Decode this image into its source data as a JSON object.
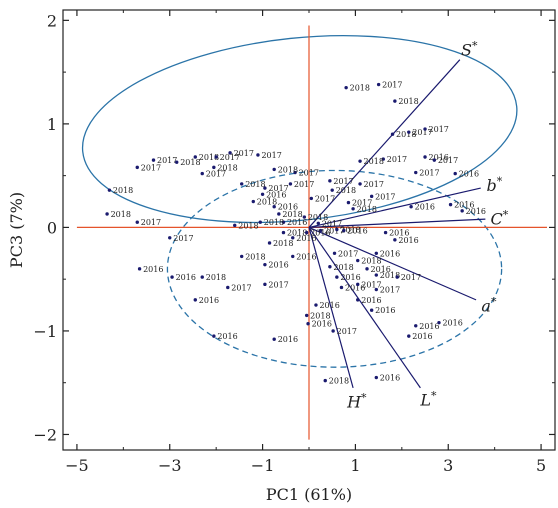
{
  "chart_data": {
    "type": "scatter",
    "title": "",
    "xlabel": "PC1 (61%)",
    "ylabel": "PC3 (7%)",
    "xlim": [
      -5.3,
      5.3
    ],
    "ylim": [
      -2.15,
      2.1
    ],
    "xticks": [
      -5,
      -3,
      -1,
      1,
      3,
      5
    ],
    "xtick_labels": [
      "−5",
      "−3",
      "−1",
      "1",
      "3",
      "5"
    ],
    "yticks": [
      -2,
      -1,
      0,
      1,
      2
    ],
    "ytick_labels": [
      "−2",
      "−1",
      "0",
      "1",
      "2"
    ],
    "grid": false,
    "colors": {
      "points": "#1a1a6e",
      "vectors": "#1a1a6e",
      "zero_lines": "#e5532b",
      "ellipses": "#2b74a8"
    },
    "vectors": [
      {
        "label": "S",
        "sup": "*",
        "x": 3.25,
        "y": 1.62
      },
      {
        "label": "b",
        "sup": "*",
        "x": 3.7,
        "y": 0.38
      },
      {
        "label": "C",
        "sup": "*",
        "x": 3.8,
        "y": 0.08
      },
      {
        "label": "a",
        "sup": "*",
        "x": 3.6,
        "y": -0.7
      },
      {
        "label": "L",
        "sup": "*",
        "x": 2.4,
        "y": -1.55
      },
      {
        "label": "H",
        "sup": "*",
        "x": 0.95,
        "y": -1.55
      }
    ],
    "ellipses": [
      {
        "group": "2017",
        "cx": -0.2,
        "cy": 0.95,
        "rx": 4.7,
        "ry": 0.88,
        "angle_deg": 6,
        "style": "solid"
      },
      {
        "group": "2016",
        "cx": 0.55,
        "cy": -0.4,
        "rx": 3.6,
        "ry": 0.95,
        "angle_deg": 0,
        "style": "dashed"
      }
    ],
    "points": [
      {
        "x": 0.8,
        "y": 1.35,
        "label": "2018"
      },
      {
        "x": 1.5,
        "y": 1.38,
        "label": "2017"
      },
      {
        "x": 1.85,
        "y": 1.22,
        "label": "2018"
      },
      {
        "x": 1.8,
        "y": 0.9,
        "label": "2018"
      },
      {
        "x": 2.15,
        "y": 0.92,
        "label": "2017"
      },
      {
        "x": 2.5,
        "y": 0.95,
        "label": "2017"
      },
      {
        "x": 1.6,
        "y": 0.66,
        "label": "2017"
      },
      {
        "x": 1.1,
        "y": 0.64,
        "label": "2018"
      },
      {
        "x": 2.5,
        "y": 0.68,
        "label": "2016"
      },
      {
        "x": 2.7,
        "y": 0.65,
        "label": "2017"
      },
      {
        "x": 2.3,
        "y": 0.53,
        "label": "2017"
      },
      {
        "x": 3.15,
        "y": 0.52,
        "label": "2016"
      },
      {
        "x": 1.1,
        "y": 0.42,
        "label": "2017"
      },
      {
        "x": 0.45,
        "y": 0.45,
        "label": "2017"
      },
      {
        "x": 0.5,
        "y": 0.36,
        "label": "2018"
      },
      {
        "x": 1.35,
        "y": 0.3,
        "label": "2017"
      },
      {
        "x": 0.85,
        "y": 0.24,
        "label": "2017"
      },
      {
        "x": 0.95,
        "y": 0.18,
        "label": "2018"
      },
      {
        "x": 0.05,
        "y": 0.28,
        "label": "2017"
      },
      {
        "x": 2.2,
        "y": 0.2,
        "label": "2016"
      },
      {
        "x": 3.05,
        "y": 0.22,
        "label": "2016"
      },
      {
        "x": 3.3,
        "y": 0.16,
        "label": "2016"
      },
      {
        "x": -0.1,
        "y": 0.1,
        "label": "2018"
      },
      {
        "x": 0.2,
        "y": 0.04,
        "label": "2017"
      },
      {
        "x": -0.55,
        "y": 0.05,
        "label": "2016"
      },
      {
        "x": -0.65,
        "y": 0.13,
        "label": "2018"
      },
      {
        "x": -0.75,
        "y": 0.2,
        "label": "2016"
      },
      {
        "x": -1.0,
        "y": 0.32,
        "label": "2016"
      },
      {
        "x": -1.2,
        "y": 0.25,
        "label": "2018"
      },
      {
        "x": -0.4,
        "y": 0.42,
        "label": "2017"
      },
      {
        "x": -1.45,
        "y": 0.42,
        "label": "2018"
      },
      {
        "x": -0.95,
        "y": 0.38,
        "label": "2017"
      },
      {
        "x": -0.3,
        "y": 0.53,
        "label": "2017"
      },
      {
        "x": -0.75,
        "y": 0.56,
        "label": "2018"
      },
      {
        "x": -2.05,
        "y": 0.58,
        "label": "2018"
      },
      {
        "x": -2.3,
        "y": 0.52,
        "label": "2017"
      },
      {
        "x": -2.45,
        "y": 0.68,
        "label": "2018"
      },
      {
        "x": -2.85,
        "y": 0.63,
        "label": "2018"
      },
      {
        "x": -3.35,
        "y": 0.65,
        "label": "2017"
      },
      {
        "x": -3.7,
        "y": 0.58,
        "label": "2017"
      },
      {
        "x": -1.7,
        "y": 0.72,
        "label": "2017"
      },
      {
        "x": -1.1,
        "y": 0.7,
        "label": "2017"
      },
      {
        "x": -2.0,
        "y": 0.68,
        "label": "2017"
      },
      {
        "x": -4.3,
        "y": 0.36,
        "label": "2018"
      },
      {
        "x": -4.35,
        "y": 0.13,
        "label": "2018"
      },
      {
        "x": -3.7,
        "y": 0.05,
        "label": "2017"
      },
      {
        "x": -3.0,
        "y": -0.1,
        "label": "2017"
      },
      {
        "x": -1.6,
        "y": 0.02,
        "label": "2018"
      },
      {
        "x": -1.05,
        "y": 0.05,
        "label": "2018"
      },
      {
        "x": -0.55,
        "y": -0.05,
        "label": "2018"
      },
      {
        "x": 0.25,
        "y": -0.03,
        "label": "2017"
      },
      {
        "x": 0.6,
        "y": -0.02,
        "label": "2018"
      },
      {
        "x": 0.75,
        "y": -0.03,
        "label": "2016"
      },
      {
        "x": 1.65,
        "y": -0.05,
        "label": "2016"
      },
      {
        "x": 1.85,
        "y": -0.12,
        "label": "2016"
      },
      {
        "x": -0.85,
        "y": -0.15,
        "label": "2018"
      },
      {
        "x": -0.35,
        "y": -0.1,
        "label": "2016"
      },
      {
        "x": -0.05,
        "y": -0.05,
        "label": "2016"
      },
      {
        "x": -1.45,
        "y": -0.28,
        "label": "2018"
      },
      {
        "x": -0.95,
        "y": -0.36,
        "label": "2016"
      },
      {
        "x": -0.35,
        "y": -0.28,
        "label": "2016"
      },
      {
        "x": 0.55,
        "y": -0.25,
        "label": "2017"
      },
      {
        "x": 1.05,
        "y": -0.32,
        "label": "2018"
      },
      {
        "x": 1.45,
        "y": -0.25,
        "label": "2016"
      },
      {
        "x": 0.45,
        "y": -0.38,
        "label": "2018"
      },
      {
        "x": 1.25,
        "y": -0.4,
        "label": "2016"
      },
      {
        "x": 1.45,
        "y": -0.46,
        "label": "2018"
      },
      {
        "x": 1.9,
        "y": -0.48,
        "label": "2017"
      },
      {
        "x": 0.6,
        "y": -0.48,
        "label": "2016"
      },
      {
        "x": 0.7,
        "y": -0.58,
        "label": "2016"
      },
      {
        "x": 1.05,
        "y": -0.55,
        "label": "2017"
      },
      {
        "x": 1.45,
        "y": -0.6,
        "label": "2017"
      },
      {
        "x": 1.05,
        "y": -0.7,
        "label": "2016"
      },
      {
        "x": 1.35,
        "y": -0.8,
        "label": "2016"
      },
      {
        "x": 0.15,
        "y": -0.75,
        "label": "2016"
      },
      {
        "x": -3.65,
        "y": -0.4,
        "label": "2016"
      },
      {
        "x": -2.95,
        "y": -0.48,
        "label": "2016"
      },
      {
        "x": -2.3,
        "y": -0.48,
        "label": "2018"
      },
      {
        "x": -1.75,
        "y": -0.58,
        "label": "2017"
      },
      {
        "x": -0.95,
        "y": -0.55,
        "label": "2017"
      },
      {
        "x": -2.45,
        "y": -0.7,
        "label": "2016"
      },
      {
        "x": -2.05,
        "y": -1.05,
        "label": "2016"
      },
      {
        "x": -0.75,
        "y": -1.08,
        "label": "2016"
      },
      {
        "x": -0.05,
        "y": -0.85,
        "label": "2018"
      },
      {
        "x": -0.02,
        "y": -0.93,
        "label": "2016"
      },
      {
        "x": 0.52,
        "y": -1.0,
        "label": "2017"
      },
      {
        "x": 2.3,
        "y": -0.95,
        "label": "2016"
      },
      {
        "x": 2.8,
        "y": -0.92,
        "label": "2016"
      },
      {
        "x": 2.15,
        "y": -1.05,
        "label": "2016"
      },
      {
        "x": 0.35,
        "y": -1.48,
        "label": "2018"
      },
      {
        "x": 1.45,
        "y": -1.45,
        "label": "2016"
      }
    ]
  }
}
